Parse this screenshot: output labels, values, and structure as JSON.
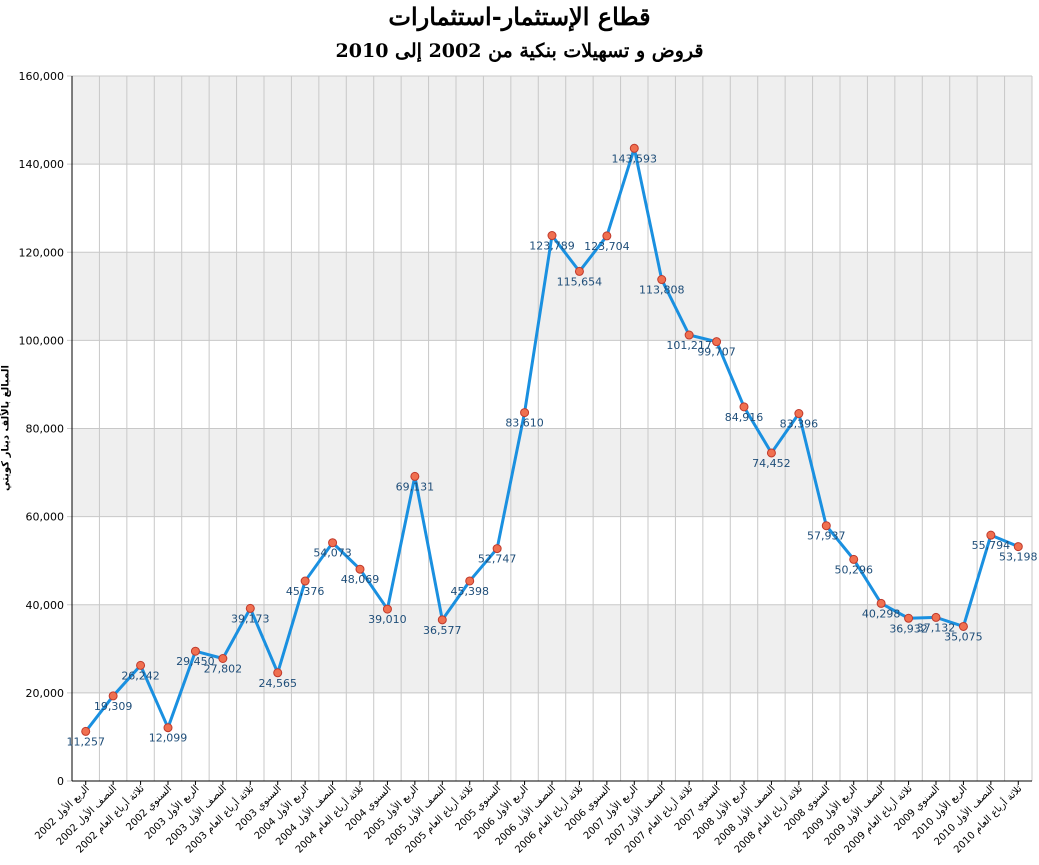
{
  "chart_data": {
    "type": "line",
    "title": "قطاع الإستثمار-استثمارات",
    "subtitle": "قروض و تسهيلات بنكية من 2002 إلى 2010",
    "xlabel": "",
    "ylabel": "المبالغ بالألف دينار كويتي",
    "ylim": [
      0,
      160000
    ],
    "yticks": [
      "0",
      "20,000",
      "40,000",
      "60,000",
      "80,000",
      "100,000",
      "120,000",
      "140,000",
      "160,000"
    ],
    "grid": true,
    "categories": [
      "2002 الربع الأول",
      "2002 النصف الأول",
      "2002 ثلاثة أرباع العام",
      "2002 السنوي",
      "2003 الربع الأول",
      "2003 النصف الأول",
      "2003 ثلاثة أرباع العام",
      "2003 السنوي",
      "2004 الربع الأول",
      "2004 النصف الأول",
      "2004 ثلاثة أرباع العام",
      "2004 السنوي",
      "2005 الربع الأول",
      "2005 النصف الأول",
      "2005 ثلاثة أرباع العام",
      "2005 السنوي",
      "2006 الربع الأول",
      "2006 النصف الأول",
      "2006 ثلاثة أرباع العام",
      "2006 السنوي",
      "2007 الربع الأول",
      "2007 النصف الأول",
      "2007 ثلاثة أرباع العام",
      "2007 السنوي",
      "2008 الربع الأول",
      "2008 النصف الأول",
      "2008 ثلاثة أرباع العام",
      "2008 السنوي",
      "2009 الربع الأول",
      "2009 النصف الأول",
      "2009 ثلاثة أرباع العام",
      "2009 السنوي",
      "2010 الربع الأول",
      "2010 النصف الأول",
      "2010 ثلاثة أرباع العام"
    ],
    "values": [
      11257,
      19309,
      26242,
      12099,
      29450,
      27802,
      39173,
      24565,
      45376,
      54073,
      48069,
      39010,
      69131,
      36577,
      45398,
      52747,
      83610,
      123789,
      115654,
      123704,
      143593,
      113808,
      101217,
      99707,
      84916,
      74452,
      83396,
      57937,
      50296,
      40298,
      36932,
      37132,
      35075,
      55794,
      53198
    ],
    "labels": [
      "11,257",
      "19,309",
      "26,242",
      "12,099",
      "29,450",
      "27,802",
      "39,173",
      "24,565",
      "45,376",
      "54,073",
      "48,069",
      "39,010",
      "69,131",
      "36,577",
      "45,398",
      "52,747",
      "83,610",
      "123,789",
      "115,654",
      "123,704",
      "143,593",
      "113,808",
      "101,217",
      "99,707",
      "84,916",
      "74,452",
      "83,396",
      "57,937",
      "50,296",
      "40,298",
      "36,932",
      "37,132",
      "35,075",
      "55,794",
      "53,198"
    ],
    "colors": {
      "line": "#1a90e0",
      "marker_fill": "#f07050",
      "marker_stroke": "#c0392b",
      "label": "#1f4e79",
      "band": "#efefef",
      "grid": "#c8c8c8"
    }
  }
}
